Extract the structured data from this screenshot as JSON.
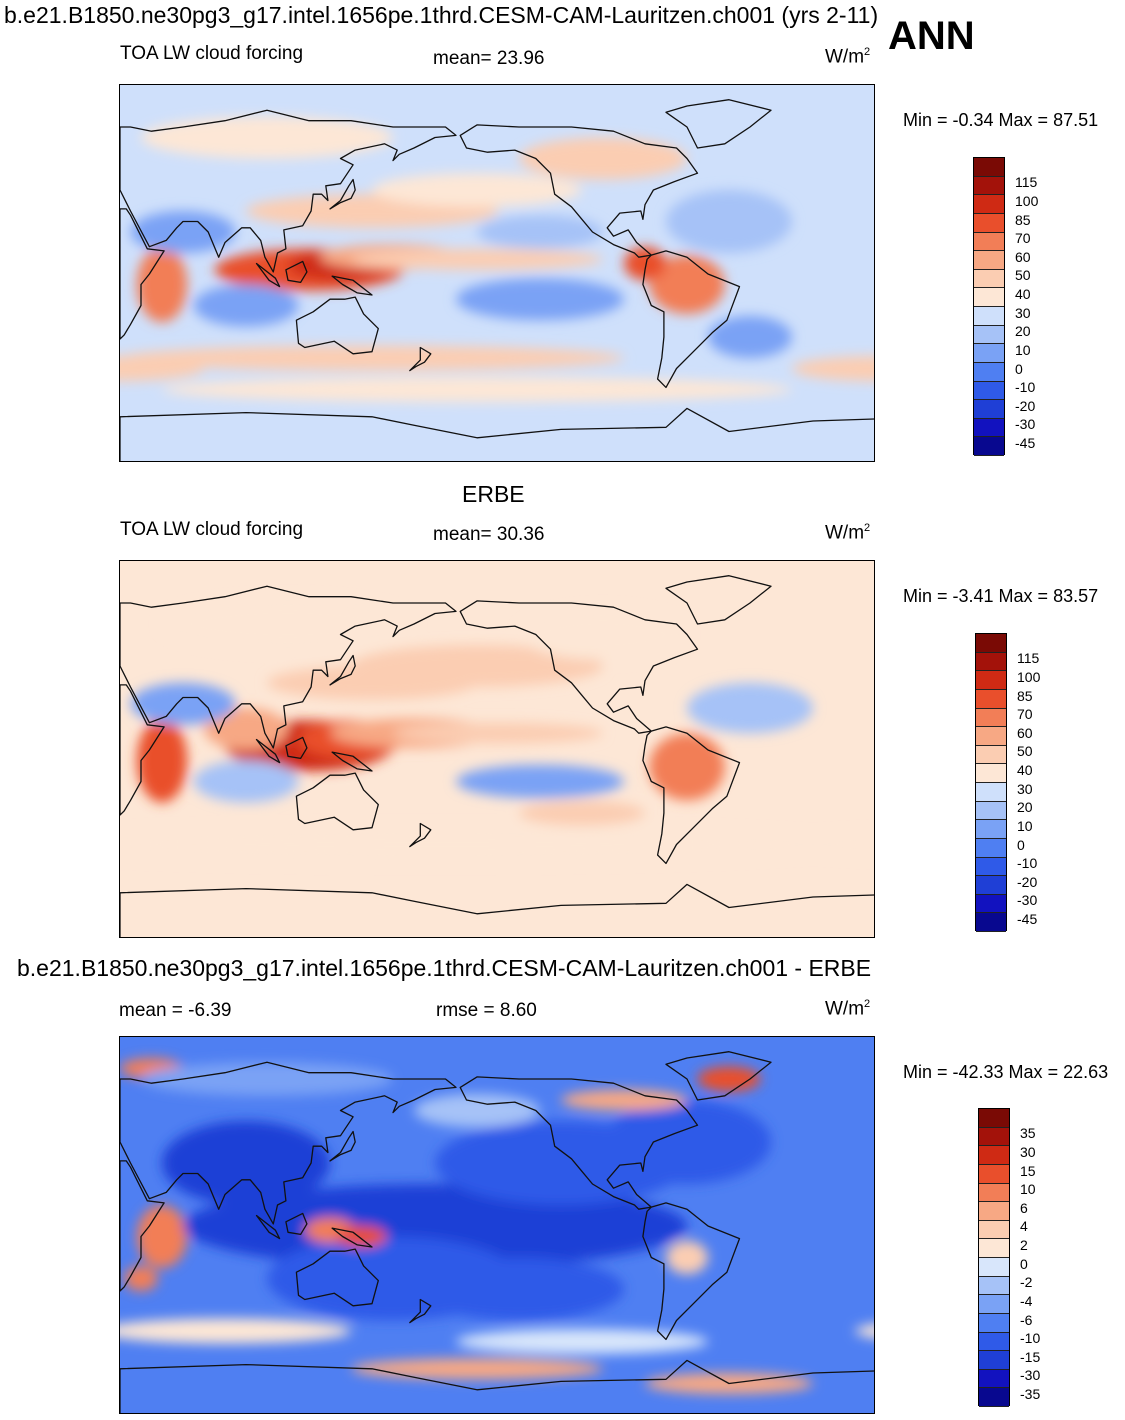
{
  "header": {
    "title": "b.e21.B1850.ne30pg3_g17.intel.1656pe.1thrd.CESM-CAM-Lauritzen.ch001 (yrs 2-11)",
    "season": "ANN"
  },
  "colors": {
    "palette_abs": [
      "#08088f",
      "#1212bf",
      "#1f3fd6",
      "#2f5ae8",
      "#4f7ff2",
      "#7aa2f5",
      "#a6c2f7",
      "#cfe0fb",
      "#fde7d6",
      "#fbcdb2",
      "#f7a884",
      "#f27e57",
      "#e94f2c",
      "#cf2a14",
      "#a3120a",
      "#7a0a05"
    ],
    "palette_diff": [
      "#08088f",
      "#1212bf",
      "#1f3fd6",
      "#2f5ae8",
      "#4f7ff2",
      "#7aa2f5",
      "#a6c2f7",
      "#d8e6fb",
      "#fde7d6",
      "#fbcdb2",
      "#f7a884",
      "#f27e57",
      "#e94f2c",
      "#cf2a14",
      "#a3120a",
      "#7a0a05"
    ],
    "coastline": "#111111"
  },
  "chart_data": [
    {
      "type": "heatmap",
      "name": "model",
      "title": "",
      "variable": "TOA LW cloud forcing",
      "mean_text": "mean=  23.96",
      "units": "W/m",
      "units_sup": "2",
      "minmax_text": "Min =  -0.34 Max =  87.51",
      "stats": {
        "mean": 23.96,
        "min": -0.34,
        "max": 87.51
      },
      "colorbar_labels": [
        "115",
        "100",
        "85",
        "70",
        "60",
        "50",
        "40",
        "30",
        "20",
        "10",
        "0",
        "-10",
        "-20",
        "-30",
        "-45"
      ]
    },
    {
      "type": "heatmap",
      "name": "obs",
      "title": "ERBE",
      "variable": "TOA LW cloud forcing",
      "mean_text": "mean=  30.36",
      "units": "W/m",
      "units_sup": "2",
      "minmax_text": "Min =  -3.41 Max =  83.57",
      "stats": {
        "mean": 30.36,
        "min": -3.41,
        "max": 83.57
      },
      "colorbar_labels": [
        "115",
        "100",
        "85",
        "70",
        "60",
        "50",
        "40",
        "30",
        "20",
        "10",
        "0",
        "-10",
        "-20",
        "-30",
        "-45"
      ]
    },
    {
      "type": "heatmap",
      "name": "difference",
      "title": "b.e21.B1850.ne30pg3_g17.intel.1656pe.1thrd.CESM-CAM-Lauritzen.ch001 - ERBE",
      "mean_text": "mean =  -6.39",
      "rmse_text": "rmse =    8.60",
      "units": "W/m",
      "units_sup": "2",
      "minmax_text": "Min = -42.33 Max =  22.63",
      "stats": {
        "mean": -6.39,
        "rmse": 8.6,
        "min": -42.33,
        "max": 22.63
      },
      "colorbar_labels": [
        "35",
        "30",
        "15",
        "10",
        "6",
        "4",
        "2",
        "0",
        "-2",
        "-4",
        "-6",
        "-10",
        "-15",
        "-30",
        "-35"
      ]
    }
  ]
}
